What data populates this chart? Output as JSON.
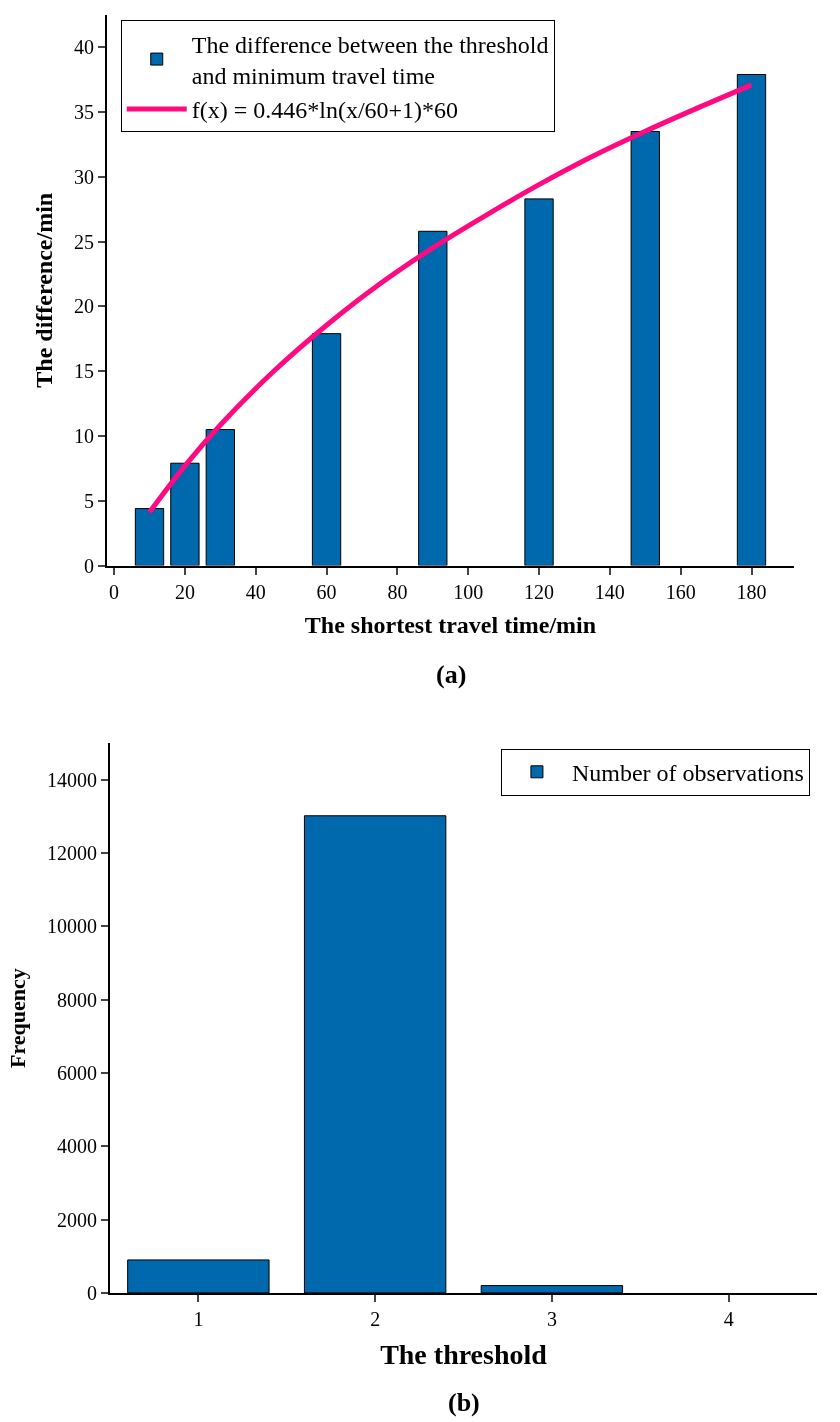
{
  "chart_data": [
    {
      "type": "bar",
      "xlabel": "The shortest travel time/min",
      "ylabel": "The difference/min",
      "annotations": [
        "(a)"
      ],
      "x": [
        10,
        20,
        30,
        60,
        90,
        120,
        150,
        180
      ],
      "series": [
        {
          "name": "The difference between the threshold and minimum travel time",
          "color": "#0068ad",
          "values": [
            4.4,
            7.9,
            10.5,
            17.9,
            25.8,
            28.3,
            33.5,
            37.9
          ]
        },
        {
          "type": "line",
          "name": "f(x) = 0.446*ln(x/60+1)*60",
          "color": "#ff0a80",
          "x": [
            10,
            20,
            30,
            45,
            60,
            75,
            90,
            105,
            120,
            135,
            150,
            165,
            180
          ],
          "values": [
            4.12,
            7.7,
            10.85,
            14.98,
            18.55,
            21.73,
            24.52,
            27.03,
            29.4,
            31.57,
            33.52,
            35.34,
            37.1
          ]
        }
      ],
      "xlim": [
        -2,
        192
      ],
      "xticks": [
        0,
        20,
        40,
        60,
        80,
        100,
        120,
        140,
        160,
        180
      ],
      "ylim": [
        0,
        42.5
      ],
      "yticks": [
        0,
        5,
        10,
        15,
        20,
        25,
        30,
        35,
        40
      ],
      "legend": "top left",
      "marker": "none",
      "line_style": "solid"
    },
    {
      "type": "bar",
      "xlabel": "The threshold",
      "ylabel": "Frequency",
      "annotations": [
        "(b)"
      ],
      "x": [
        1,
        2,
        3
      ],
      "series": [
        {
          "name": "Number of observations",
          "color": "#0068ad",
          "values": [
            900,
            13020,
            200
          ]
        }
      ],
      "xlim": [
        0.5,
        4.5
      ],
      "xticks": [
        1,
        2,
        3,
        4
      ],
      "ylim": [
        0,
        15000
      ],
      "yticks": [
        0,
        2000,
        4000,
        6000,
        8000,
        10000,
        12000,
        14000
      ],
      "legend": "top right"
    }
  ]
}
